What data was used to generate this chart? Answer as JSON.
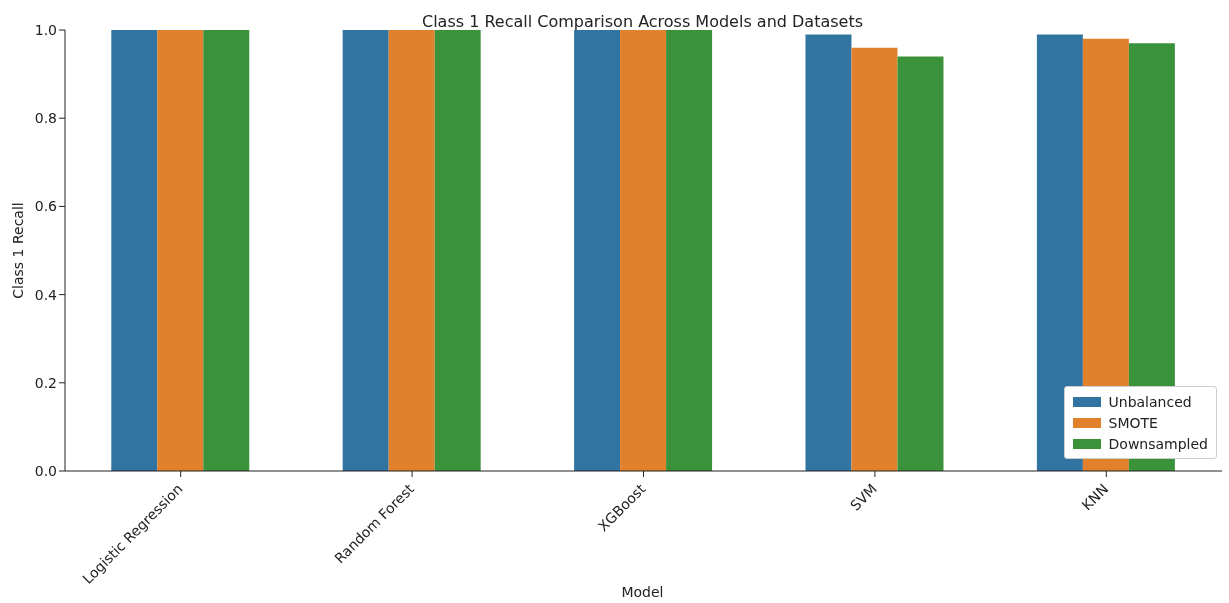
{
  "chart_data": {
    "type": "bar",
    "title": "Class 1 Recall Comparison Across Models and Datasets",
    "xlabel": "Model",
    "ylabel": "Class 1 Recall",
    "categories": [
      "Logistic Regression",
      "Random Forest",
      "XGBoost",
      "SVM",
      "KNN"
    ],
    "series": [
      {
        "name": "Unbalanced",
        "color": "#3274a1",
        "values": [
          1.0,
          1.0,
          1.0,
          0.99,
          0.99
        ]
      },
      {
        "name": "SMOTE",
        "color": "#e1812c",
        "values": [
          1.0,
          1.0,
          1.0,
          0.96,
          0.98
        ]
      },
      {
        "name": "Downsampled",
        "color": "#3a923a",
        "values": [
          1.0,
          1.0,
          1.0,
          0.94,
          0.97
        ]
      }
    ],
    "ylim": [
      0,
      1
    ],
    "yticks": [
      {
        "value": 0,
        "label": "0.0"
      },
      0.2,
      0.4,
      0.6,
      0.8,
      {
        "value": 1,
        "label": "1.0"
      }
    ],
    "grid": false,
    "legend": "bottom right"
  }
}
